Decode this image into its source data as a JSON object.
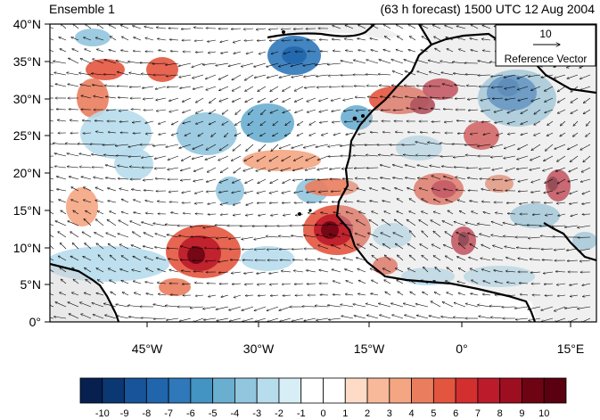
{
  "header": {
    "left_title": "Ensemble 1",
    "right_title": "(63 h forecast) 1500 UTC 12 Aug 2004"
  },
  "map": {
    "lat_ticks": [
      "40°N",
      "35°N",
      "30°N",
      "25°N",
      "20°N",
      "15°N",
      "10°N",
      "5°N",
      "0°"
    ],
    "lon_ticks": [
      "45°W",
      "30°W",
      "15°W",
      "0°",
      "15°E"
    ],
    "land_color": "#d3d3d3",
    "coastline_color": "#000000"
  },
  "reference_vector": {
    "magnitude": "10",
    "label": "Reference Vector"
  },
  "colorbar": {
    "labels": [
      "-10",
      "-9",
      "-8",
      "-7",
      "-6",
      "-5",
      "-4",
      "-3",
      "-2",
      "-1",
      "0",
      "1",
      "2",
      "3",
      "4",
      "5",
      "6",
      "7",
      "8",
      "9",
      "10"
    ],
    "colors": [
      "#08204f",
      "#0b3773",
      "#17549a",
      "#2166ac",
      "#2f78b9",
      "#4393c3",
      "#6aaed0",
      "#92c5de",
      "#b7dcec",
      "#d8eef7",
      "#ffffff",
      "#ffffff",
      "#fddbc7",
      "#f8b99b",
      "#f4a582",
      "#ea7d5e",
      "#e3553f",
      "#d32f2f",
      "#bb1b2a",
      "#9c0e20",
      "#6e0413",
      "#5a0010"
    ]
  }
}
